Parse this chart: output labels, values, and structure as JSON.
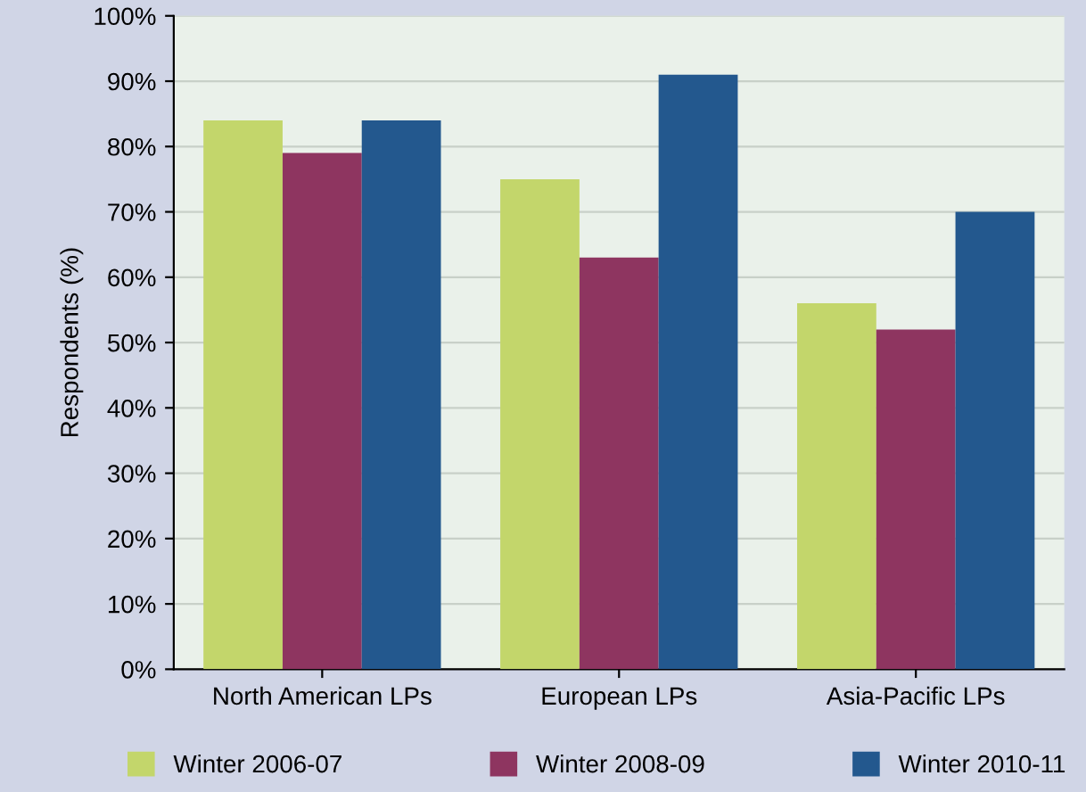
{
  "chart_data": {
    "type": "bar",
    "ylabel": "Respondents (%)",
    "categories": [
      "North American LPs",
      "European LPs",
      "Asia-Pacific LPs"
    ],
    "series": [
      {
        "name": "Winter 2006-07",
        "color": "#c3d66b",
        "values": [
          84,
          75,
          56
        ]
      },
      {
        "name": "Winter 2008-09",
        "color": "#8e3560",
        "values": [
          79,
          63,
          52
        ]
      },
      {
        "name": "Winter 2010-11",
        "color": "#23588e",
        "values": [
          84,
          91,
          70
        ]
      }
    ],
    "ylim": [
      0,
      100
    ],
    "yticks": [
      {
        "value": 0,
        "label": "0%"
      },
      {
        "value": 10,
        "label": "10%"
      },
      {
        "value": 20,
        "label": "20%"
      },
      {
        "value": 30,
        "label": "30%"
      },
      {
        "value": 40,
        "label": "40%"
      },
      {
        "value": 50,
        "label": "50%"
      },
      {
        "value": 60,
        "label": "60%"
      },
      {
        "value": 70,
        "label": "70%"
      },
      {
        "value": 80,
        "label": "80%"
      },
      {
        "value": 90,
        "label": "90%"
      },
      {
        "value": 100,
        "label": "100%"
      }
    ],
    "grid": "y",
    "legend": "bottom"
  }
}
